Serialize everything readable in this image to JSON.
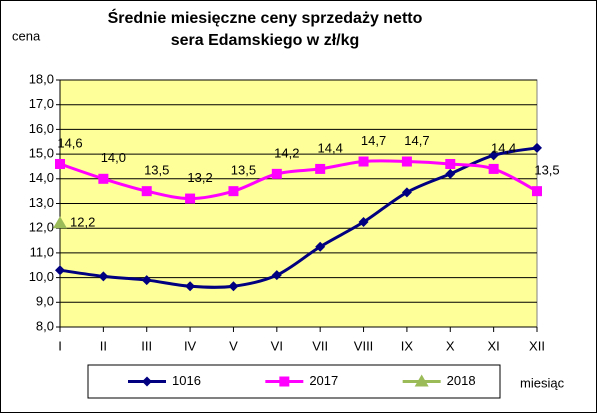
{
  "chart_data": {
    "type": "line",
    "title": "Średnie miesięczne ceny sprzedaży netto sera Edamskiego w zł/kg",
    "y_label": "cena",
    "x_label": "miesiąc",
    "categories": [
      "I",
      "II",
      "III",
      "IV",
      "V",
      "VI",
      "VII",
      "VIII",
      "IX",
      "X",
      "XI",
      "XII"
    ],
    "ylim": [
      8,
      18
    ],
    "yticks": [
      {
        "value": 8,
        "label": "8,0"
      },
      {
        "value": 9,
        "label": "9,0"
      },
      {
        "value": 10,
        "label": "10,0"
      },
      {
        "value": 11,
        "label": "11,0"
      },
      {
        "value": 12,
        "label": "12,0"
      },
      {
        "value": 13,
        "label": "13,0"
      },
      {
        "value": 14,
        "label": "14,0"
      },
      {
        "value": 15,
        "label": "15,0"
      },
      {
        "value": 16,
        "label": "16,0"
      },
      {
        "value": 17,
        "label": "17,0"
      },
      {
        "value": 18,
        "label": "18,0"
      }
    ],
    "grid": true,
    "plot_background": "#ffff99",
    "legend": "bottom",
    "series": [
      {
        "name": "1016",
        "color": "#000080",
        "marker": "diamond",
        "values": [
          10.3,
          10.05,
          9.9,
          9.65,
          9.65,
          10.1,
          11.25,
          12.25,
          13.45,
          14.2,
          14.95,
          15.25
        ]
      },
      {
        "name": "2017",
        "color": "#ff00ff",
        "marker": "square",
        "values": [
          14.6,
          14.0,
          13.5,
          13.2,
          13.5,
          14.2,
          14.4,
          14.7,
          14.7,
          14.6,
          14.4,
          13.5
        ],
        "value_labels": [
          "14,6",
          "14,0",
          "13,5",
          "13,2",
          "13,5",
          "14,2",
          "14,4",
          "14,7",
          "14,7",
          null,
          "14,4",
          "13,5"
        ]
      },
      {
        "name": "2018",
        "color": "#9bbb59",
        "marker": "triangle",
        "values": [
          12.2,
          null,
          null,
          null,
          null,
          null,
          null,
          null,
          null,
          null,
          null,
          null
        ],
        "value_labels": [
          "12,2",
          null,
          null,
          null,
          null,
          null,
          null,
          null,
          null,
          null,
          null,
          null
        ]
      }
    ]
  }
}
